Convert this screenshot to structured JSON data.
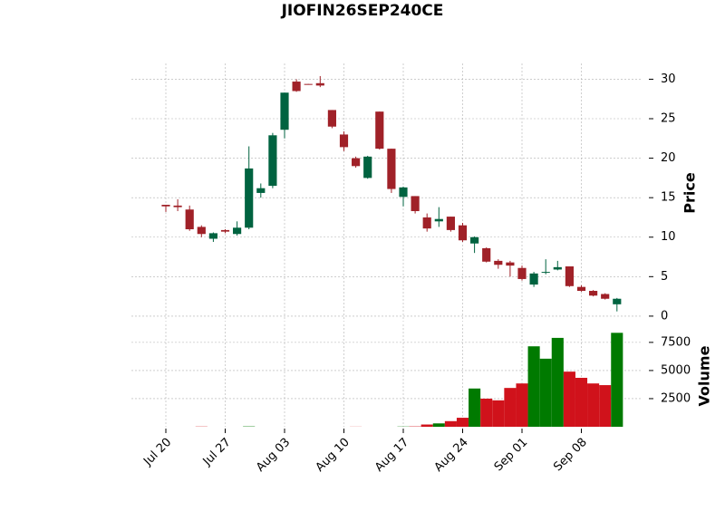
{
  "chart_data": {
    "type": "candlestick",
    "title": "JIOFIN26SEP240CE",
    "categories": [
      "Jul 20",
      null,
      null,
      null,
      null,
      "Jul 27",
      null,
      null,
      null,
      null,
      "Aug 03",
      null,
      null,
      null,
      null,
      "Aug 10",
      null,
      null,
      null,
      null,
      "Aug 17",
      null,
      null,
      null,
      null,
      "Aug 24",
      null,
      null,
      null,
      null,
      "Sep 01",
      null,
      null,
      null,
      null,
      "Sep 08",
      null,
      null,
      null
    ],
    "open": [
      14.1,
      14.0,
      13.5,
      11.3,
      9.8,
      10.9,
      10.4,
      11.2,
      15.6,
      16.5,
      23.6,
      29.7,
      29.4,
      29.5,
      26.1,
      23.0,
      20.0,
      17.5,
      25.9,
      21.2,
      15.1,
      15.2,
      12.5,
      12.0,
      12.6,
      11.5,
      9.2,
      8.6,
      7.0,
      6.8,
      6.1,
      4.0,
      5.5,
      5.9,
      6.3,
      3.7,
      3.2,
      2.8,
      1.5
    ],
    "high": [
      14.1,
      14.8,
      14.0,
      11.5,
      10.6,
      11.0,
      12.0,
      21.5,
      16.8,
      23.2,
      28.3,
      30.0,
      29.4,
      30.4,
      26.1,
      23.4,
      20.2,
      20.3,
      25.9,
      21.2,
      16.4,
      15.2,
      13.0,
      13.8,
      12.6,
      11.8,
      10.1,
      8.7,
      7.2,
      7.0,
      6.4,
      5.6,
      7.2,
      7.0,
      6.3,
      3.9,
      3.3,
      2.9,
      2.3
    ],
    "low": [
      13.2,
      13.3,
      10.8,
      10.0,
      9.4,
      10.5,
      10.2,
      11.0,
      15.0,
      16.2,
      22.5,
      28.4,
      29.3,
      29.0,
      23.8,
      20.9,
      18.8,
      17.4,
      21.1,
      15.6,
      13.9,
      13.0,
      10.7,
      11.3,
      10.7,
      9.4,
      8.0,
      6.8,
      6.0,
      5.0,
      4.5,
      3.7,
      5.3,
      5.8,
      3.7,
      3.1,
      2.5,
      2.1,
      0.6
    ],
    "close": [
      13.9,
      13.8,
      11.0,
      10.4,
      10.5,
      10.7,
      11.2,
      18.7,
      16.2,
      22.9,
      28.3,
      28.5,
      29.3,
      29.2,
      24.0,
      21.4,
      19.0,
      20.2,
      21.2,
      16.1,
      16.3,
      13.3,
      11.1,
      12.3,
      10.9,
      9.6,
      10.0,
      6.9,
      6.5,
      6.4,
      4.7,
      5.4,
      5.6,
      6.2,
      3.8,
      3.2,
      2.6,
      2.2,
      2.2
    ],
    "volume": [
      0,
      0,
      0,
      20,
      0,
      0,
      0,
      30,
      0,
      0,
      0,
      0,
      0,
      0,
      0,
      0,
      10,
      0,
      0,
      0,
      20,
      30,
      200,
      300,
      500,
      800,
      3400,
      2500,
      2350,
      3450,
      3850,
      7150,
      6050,
      7900,
      4900,
      4350,
      3850,
      3700,
      8350
    ],
    "ylabel": "Price",
    "ylim": [
      -0.7,
      32.0
    ],
    "yticks": [
      0,
      5,
      10,
      15,
      20,
      25,
      30
    ],
    "y2label": "Volume",
    "y2lim": [
      0,
      9100
    ],
    "y2ticks": [
      2500,
      5000,
      7500
    ],
    "up_color": "#006340",
    "down_color": "#a02128",
    "volume_up_color": "#007a00",
    "volume_down_color": "#d0121b",
    "grid": true
  }
}
